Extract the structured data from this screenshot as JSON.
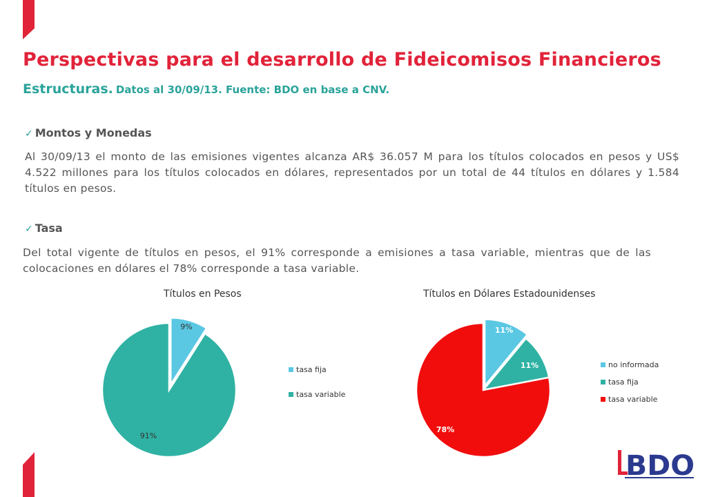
{
  "header": {
    "title": "Perspectivas para el desarrollo de Fideicomisos Financieros",
    "subtitle_main": "Estructuras.",
    "subtitle_detail": "Datos al 30/09/13. Fuente: BDO en base a CNV."
  },
  "sections": [
    {
      "heading": "Montos y Monedas",
      "text": "Al 30/09/13 el monto de las emisiones vigentes alcanza AR$ 36.057 M para los títulos colocados en pesos y US$ 4.522 millones para los títulos colocados en dólares, representados por un total de 44 títulos en dólares y 1.584 títulos en pesos."
    },
    {
      "heading": "Tasa",
      "text": "Del total vigente de títulos en pesos, el 91% corresponde a emisiones a tasa variable, mientras que de las colocaciones en dólares el 78% corresponde a tasa variable."
    }
  ],
  "colors": {
    "accent_red": "#e1233a",
    "teal": "#2aa39a",
    "light_blue": "#5bc8e3",
    "pie_teal": "#2fb2a3",
    "pie_red": "#f20d0d",
    "bdo_blue": "#2b3a8f"
  },
  "chart_data": [
    {
      "type": "pie",
      "title": "Títulos en Pesos",
      "labels": [
        "tasa fija",
        "tasa variable"
      ],
      "values": [
        9,
        91
      ],
      "data_labels": [
        "9%",
        "91%"
      ],
      "colors": [
        "#5bc8e3",
        "#2fb2a3"
      ],
      "legend_position": "right"
    },
    {
      "type": "pie",
      "title": "Títulos en Dólares Estadounidenses",
      "labels": [
        "no informada",
        "tasa fija",
        "tasa variable"
      ],
      "values": [
        11,
        11,
        78
      ],
      "data_labels": [
        "11%",
        "11%",
        "78%"
      ],
      "colors": [
        "#5bc8e3",
        "#2fb2a3",
        "#f20d0d"
      ],
      "legend_position": "right"
    }
  ],
  "logo": {
    "text": "BDO"
  }
}
